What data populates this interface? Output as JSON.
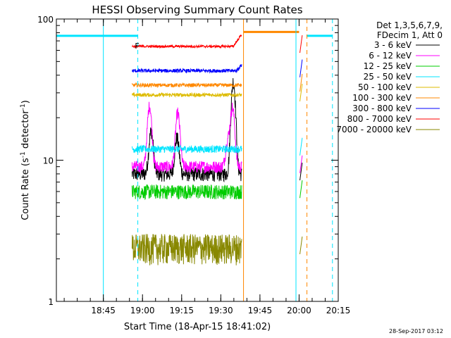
{
  "chart_data": {
    "type": "line",
    "title": "HESSI Observing Summary Count Rates",
    "xlabel": "Start Time (18-Apr-15 18:41:02)",
    "ylabel_parts": [
      "Count Rate (s",
      "-1",
      " detector",
      "-1",
      ")"
    ],
    "y_scale": "log",
    "ylim": [
      1,
      100
    ],
    "xlim_minutes": [
      18.45,
      20.25
    ],
    "x_ticks": [
      "18:45",
      "19:00",
      "19:15",
      "19:30",
      "19:45",
      "20:00",
      "20:15"
    ],
    "y_ticks": [
      "1",
      "10",
      "100"
    ],
    "legend_header": [
      "Det 1,3,5,6,7,9,",
      "FDecim 1, Att 0"
    ],
    "legend_placement": "right",
    "flag_label": "F",
    "series": [
      {
        "name": "3 - 6 keV",
        "color": "#000000",
        "base": 8,
        "noise": 0.12,
        "peaks": [
          [
            19.055,
            2.0
          ],
          [
            19.22,
            1.8
          ],
          [
            19.58,
            4.5
          ]
        ]
      },
      {
        "name": "6 - 12 keV",
        "color": "#ff00ff",
        "base": 9,
        "noise": 0.1,
        "peaks": [
          [
            19.045,
            2.7
          ],
          [
            19.225,
            2.4
          ],
          [
            19.545,
            1.5
          ],
          [
            19.575,
            2.6
          ]
        ]
      },
      {
        "name": "12 - 25 keV",
        "color": "#00cc00",
        "base": 6,
        "noise": 0.12,
        "peaks": []
      },
      {
        "name": "25 - 50 keV",
        "color": "#00e5ff",
        "base": 12,
        "noise": 0.06,
        "peaks": []
      },
      {
        "name": "50 - 100 keV",
        "color": "#ddbb00",
        "base": 29,
        "noise": 0.03,
        "peaks": []
      },
      {
        "name": "100 - 300 keV",
        "color": "#ff8800",
        "base": 34,
        "noise": 0.03,
        "peaks": []
      },
      {
        "name": "300 - 800 keV",
        "color": "#0000ff",
        "base": 43,
        "noise": 0.03,
        "peaks": []
      },
      {
        "name": "800 - 7000 keV",
        "color": "#ff0000",
        "base": 64,
        "noise": 0.02,
        "peaks": []
      },
      {
        "name": "7000 - 20000 keV",
        "color": "#888800",
        "base": 2.4,
        "noise": 0.25,
        "peaks": []
      }
    ],
    "solid_vlines": [
      {
        "x": 18.75,
        "color": "#00e5ff"
      },
      {
        "x": 19.645,
        "color": "#ff8800"
      },
      {
        "x": 19.98,
        "color": "#00e5ff"
      }
    ],
    "dashed_vlines": [
      {
        "x": 18.97,
        "color": "#00e5ff"
      },
      {
        "x": 20.05,
        "color": "#ff8800"
      },
      {
        "x": 20.213,
        "color": "#00e5ff"
      }
    ],
    "hsegments": [
      {
        "x0": 18.45,
        "x1": 18.97,
        "y": 76,
        "color": "#00e5ff"
      },
      {
        "x0": 20.05,
        "x1": 20.213,
        "y": 76,
        "color": "#00e5ff"
      },
      {
        "x0": 19.645,
        "x1": 20.0,
        "y": 81,
        "color": "#ff8800"
      }
    ],
    "grid": false
  },
  "footer": {
    "timestamp": "28-Sep-2017 03:12"
  }
}
